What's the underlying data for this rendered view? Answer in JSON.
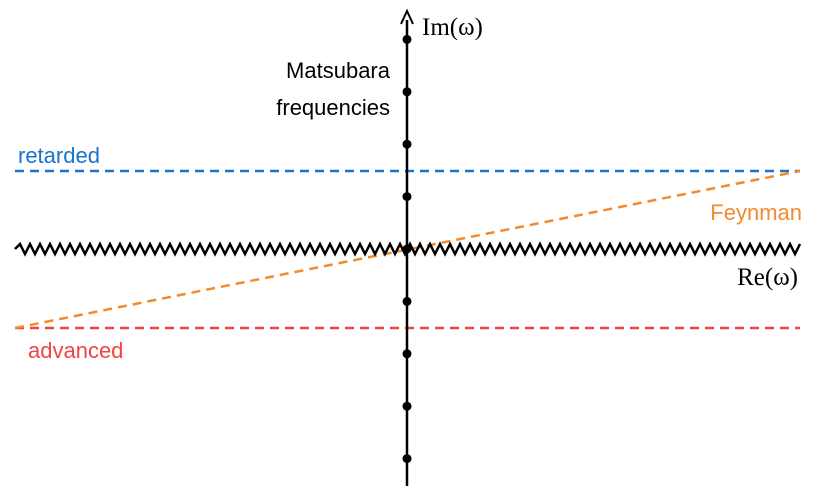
{
  "axes": {
    "imaginary": "Im(ω)",
    "real": "Re(ω)"
  },
  "labels": {
    "matsubara": [
      "Matsubara",
      "frequencies"
    ],
    "retarded": "retarded",
    "advanced": "advanced",
    "feynman": "Feynman"
  }
}
